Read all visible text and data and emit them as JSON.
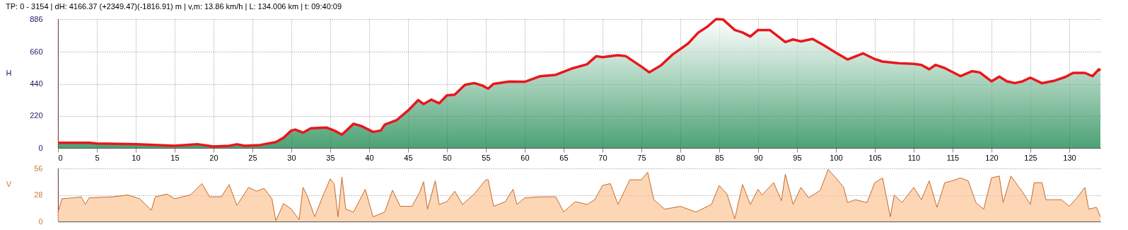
{
  "chart_data": [
    {
      "type": "area",
      "title": "TP: 0 - 3154 | dH: 4166.37  (+2349.47)(-1816.91) m | v,m: 13.86 km/h | L: 134.006 km | t: 09:40:09",
      "ylabel": "H",
      "xlim": [
        0,
        134.006
      ],
      "xticks": [
        0,
        5,
        10,
        15,
        20,
        25,
        30,
        35,
        40,
        45,
        50,
        55,
        60,
        65,
        70,
        75,
        80,
        85,
        90,
        95,
        100,
        105,
        110,
        115,
        120,
        125,
        130
      ],
      "ylim": [
        0,
        886
      ],
      "yticks": [
        0,
        220,
        440,
        660,
        886
      ],
      "grid": true,
      "ref_lines": [
        {
          "axis": "x",
          "value": 0,
          "color": "#e03030",
          "line_style": "dotted"
        }
      ],
      "series": [
        {
          "color": "#e8171c",
          "x": [
            0,
            4,
            5,
            10,
            15,
            18,
            20,
            22,
            23,
            24,
            26,
            28,
            29,
            30,
            30.5,
            31.5,
            32.5,
            34.5,
            35.5,
            36.5,
            38,
            39,
            40.5,
            41.5,
            42,
            43.5,
            45,
            46.3,
            47,
            48,
            49,
            50,
            51,
            52.3,
            53.5,
            54.5,
            55.3,
            56,
            58,
            60,
            62,
            64,
            66,
            68,
            69.2,
            70,
            72,
            73,
            75,
            76,
            77.5,
            79,
            81,
            82.3,
            83.5,
            84.6,
            85.5,
            87,
            88,
            89,
            90,
            91.5,
            93.5,
            94.5,
            95.5,
            97,
            98.5,
            100,
            101.5,
            103.5,
            105,
            106,
            108,
            110,
            111,
            112,
            112.8,
            114,
            116,
            117.5,
            118.5,
            120,
            121,
            122,
            123,
            124,
            125,
            126.5,
            128,
            129.5,
            130.5,
            132,
            133,
            133.8,
            134.006
          ],
          "values": [
            35,
            35,
            30,
            25,
            15,
            25,
            10,
            15,
            25,
            15,
            20,
            40,
            70,
            120,
            126,
            105,
            135,
            140,
            120,
            91,
            166,
            150,
            110,
            120,
            160,
            190,
            257,
            329,
            302,
            332,
            307,
            361,
            366,
            433,
            446,
            430,
            408,
            441,
            456,
            455,
            493,
            503,
            545,
            575,
            631,
            624,
            638,
            631,
            559,
            520,
            567,
            642,
            718,
            793,
            835,
            886,
            883,
            811,
            794,
            766,
            811,
            811,
            728,
            746,
            733,
            750,
            705,
            655,
            608,
            650,
            611,
            594,
            583,
            578,
            571,
            541,
            571,
            549,
            494,
            528,
            519,
            458,
            491,
            458,
            446,
            458,
            483,
            445,
            461,
            488,
            516,
            516,
            494,
            541,
            533
          ]
        }
      ]
    },
    {
      "type": "area",
      "ylabel": "V",
      "xlim": [
        0,
        134.006
      ],
      "ylim": [
        0,
        56
      ],
      "yticks": [
        0,
        28,
        56
      ],
      "grid": "y",
      "tick_labels": "y",
      "ref_lines": [
        {
          "axis": "x",
          "value": 0,
          "color": "#e03030",
          "line_style": "dotted"
        }
      ],
      "series": [
        {
          "color": "#fcc596",
          "x": [
            0,
            0.5,
            2,
            3,
            3.5,
            4,
            7,
            9,
            10.5,
            12,
            12.5,
            14,
            15,
            17,
            18.5,
            19.5,
            21,
            22,
            23,
            24.5,
            25.5,
            26.5,
            27.5,
            28,
            29,
            30,
            31,
            31.5,
            32,
            33,
            34,
            35,
            35.5,
            36,
            36.5,
            37,
            38,
            39.5,
            40.5,
            42,
            43,
            44,
            45.5,
            46.5,
            47,
            47.5,
            48.5,
            49,
            50,
            51,
            52,
            53.5,
            55,
            55.3,
            56,
            57.5,
            58.5,
            59,
            60,
            62,
            64,
            65,
            66.5,
            68,
            69,
            70,
            71,
            72,
            73.5,
            74.5,
            75,
            75.8,
            76.6,
            78,
            80,
            82,
            84,
            85,
            86,
            87,
            88,
            89,
            90,
            90.5,
            92,
            93,
            93.5,
            94.5,
            95.5,
            96.5,
            98,
            99,
            100,
            101,
            101.5,
            102.5,
            104,
            105,
            106,
            107,
            107.5,
            108.5,
            110,
            111,
            112,
            113,
            114,
            115,
            116,
            117,
            118,
            119,
            120,
            121,
            121.5,
            122.5,
            124,
            125,
            125.5,
            126.5,
            127,
            129,
            130,
            131,
            132,
            132.5,
            133.5,
            134
          ],
          "values": [
            10,
            24,
            25,
            26,
            18,
            25,
            26,
            28,
            24,
            12,
            26,
            29,
            24,
            28,
            40,
            26,
            26,
            39,
            17,
            36,
            32,
            35,
            24,
            1,
            19,
            13,
            2,
            36,
            28,
            5,
            26,
            45,
            40,
            5,
            47,
            13,
            10,
            34,
            5,
            10,
            33,
            16,
            16,
            31,
            42,
            13,
            43,
            18,
            21,
            32,
            18,
            29,
            44,
            44,
            16,
            21,
            34,
            18,
            25,
            26,
            26,
            10,
            21,
            18,
            23,
            38,
            40,
            18,
            44,
            44,
            44,
            52,
            23,
            13,
            16,
            10,
            18,
            38,
            29,
            3,
            39,
            18,
            34,
            28,
            41,
            22,
            50,
            18,
            36,
            25,
            33,
            55,
            46,
            36,
            20,
            23,
            20,
            41,
            46,
            5,
            28,
            20,
            36,
            23,
            43,
            15,
            41,
            43,
            46,
            43,
            20,
            13,
            46,
            48,
            20,
            48,
            31,
            18,
            41,
            41,
            23,
            23,
            16,
            25,
            36,
            13,
            15,
            5
          ]
        }
      ]
    }
  ]
}
